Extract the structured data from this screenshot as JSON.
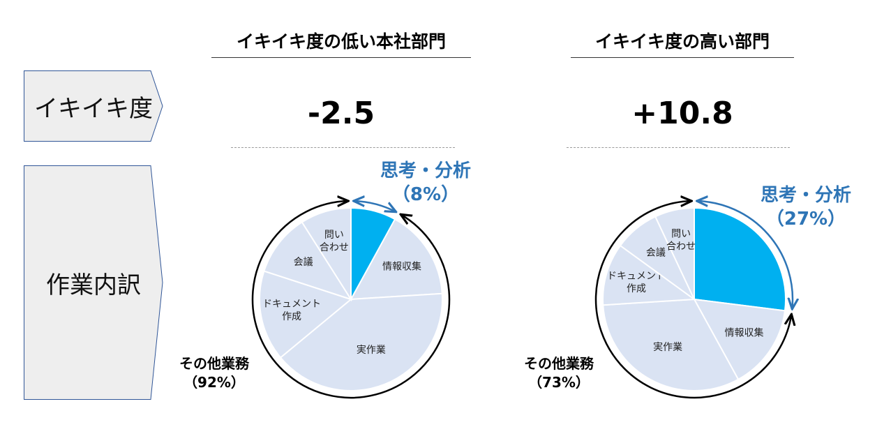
{
  "row_labels": {
    "ikiiki": "イキイキ度",
    "breakdown": "作業内訳"
  },
  "colors": {
    "highlight": "#00b0f0",
    "slice": "#dae3f3",
    "callout": "#2e75b6",
    "label_bg": "#eeeeee"
  },
  "chart_data": [
    {
      "type": "pie",
      "title": "イキイキ度の低い本社部門",
      "score": "-2.5",
      "slices": [
        {
          "label": "思考・分析",
          "value": 8,
          "highlight": true
        },
        {
          "label": "情報収集",
          "value": 16
        },
        {
          "label": "実作業",
          "value": 40
        },
        {
          "label": "ドキュメント\n作成",
          "value": 16
        },
        {
          "label": "会議",
          "value": 11
        },
        {
          "label": "問い\n合わせ",
          "value": 9
        }
      ],
      "callout": {
        "title": "思考・分析",
        "pct": "（8%）"
      },
      "other": {
        "title": "その他業務",
        "pct": "（92%）"
      }
    },
    {
      "type": "pie",
      "title": "イキイキ度の高い部門",
      "score": "+10.8",
      "slices": [
        {
          "label": "思考・分析",
          "value": 27,
          "highlight": true
        },
        {
          "label": "情報収集",
          "value": 15
        },
        {
          "label": "実作業",
          "value": 32
        },
        {
          "label": "ドキュメント\n作成",
          "value": 11
        },
        {
          "label": "会議",
          "value": 8
        },
        {
          "label": "問い\n合わせ",
          "value": 7
        }
      ],
      "callout": {
        "title": "思考・分析",
        "pct": "（27%）"
      },
      "other": {
        "title": "その他業務",
        "pct": "（73%）"
      }
    }
  ]
}
